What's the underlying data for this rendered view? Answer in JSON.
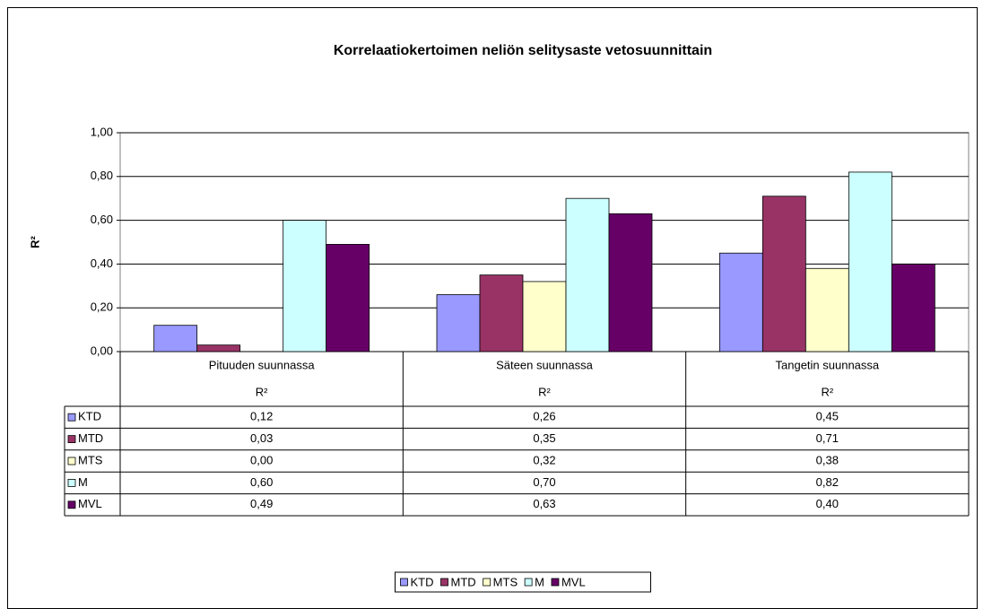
{
  "chart_data": {
    "type": "bar",
    "title": "Korrelaatiokertoimen neliön selitysaste vetosuunnittain",
    "ylabel": "R²",
    "categories": [
      "Pituuden suunnassa",
      "Säteen suunnassa",
      "Tangetin suunnassa"
    ],
    "category_sublabels": [
      "R²",
      "R²",
      "R²"
    ],
    "series": [
      {
        "name": "KTD",
        "color": "#9999ff",
        "values": [
          0.12,
          0.26,
          0.45
        ],
        "value_labels": [
          "0,12",
          "0,26",
          "0,45"
        ]
      },
      {
        "name": "MTD",
        "color": "#993366",
        "values": [
          0.03,
          0.35,
          0.71
        ],
        "value_labels": [
          "0,03",
          "0,35",
          "0,71"
        ]
      },
      {
        "name": "MTS",
        "color": "#ffffcc",
        "values": [
          0.0,
          0.32,
          0.38
        ],
        "value_labels": [
          "0,00",
          "0,32",
          "0,38"
        ]
      },
      {
        "name": "M",
        "color": "#ccffff",
        "values": [
          0.6,
          0.7,
          0.82
        ],
        "value_labels": [
          "0,60",
          "0,70",
          "0,82"
        ]
      },
      {
        "name": "MVL",
        "color": "#660066",
        "values": [
          0.49,
          0.63,
          0.4
        ],
        "value_labels": [
          "0,49",
          "0,63",
          "0,40"
        ]
      }
    ],
    "ylim": [
      0,
      1
    ],
    "yticks": [
      {
        "value": 0,
        "label": "0,00"
      },
      {
        "value": 0.2,
        "label": "0,20"
      },
      {
        "value": 0.4,
        "label": "0,40"
      },
      {
        "value": 0.6,
        "label": "0,60"
      },
      {
        "value": 0.8,
        "label": "0,80"
      },
      {
        "value": 1,
        "label": "1,00"
      }
    ],
    "grid": true
  }
}
